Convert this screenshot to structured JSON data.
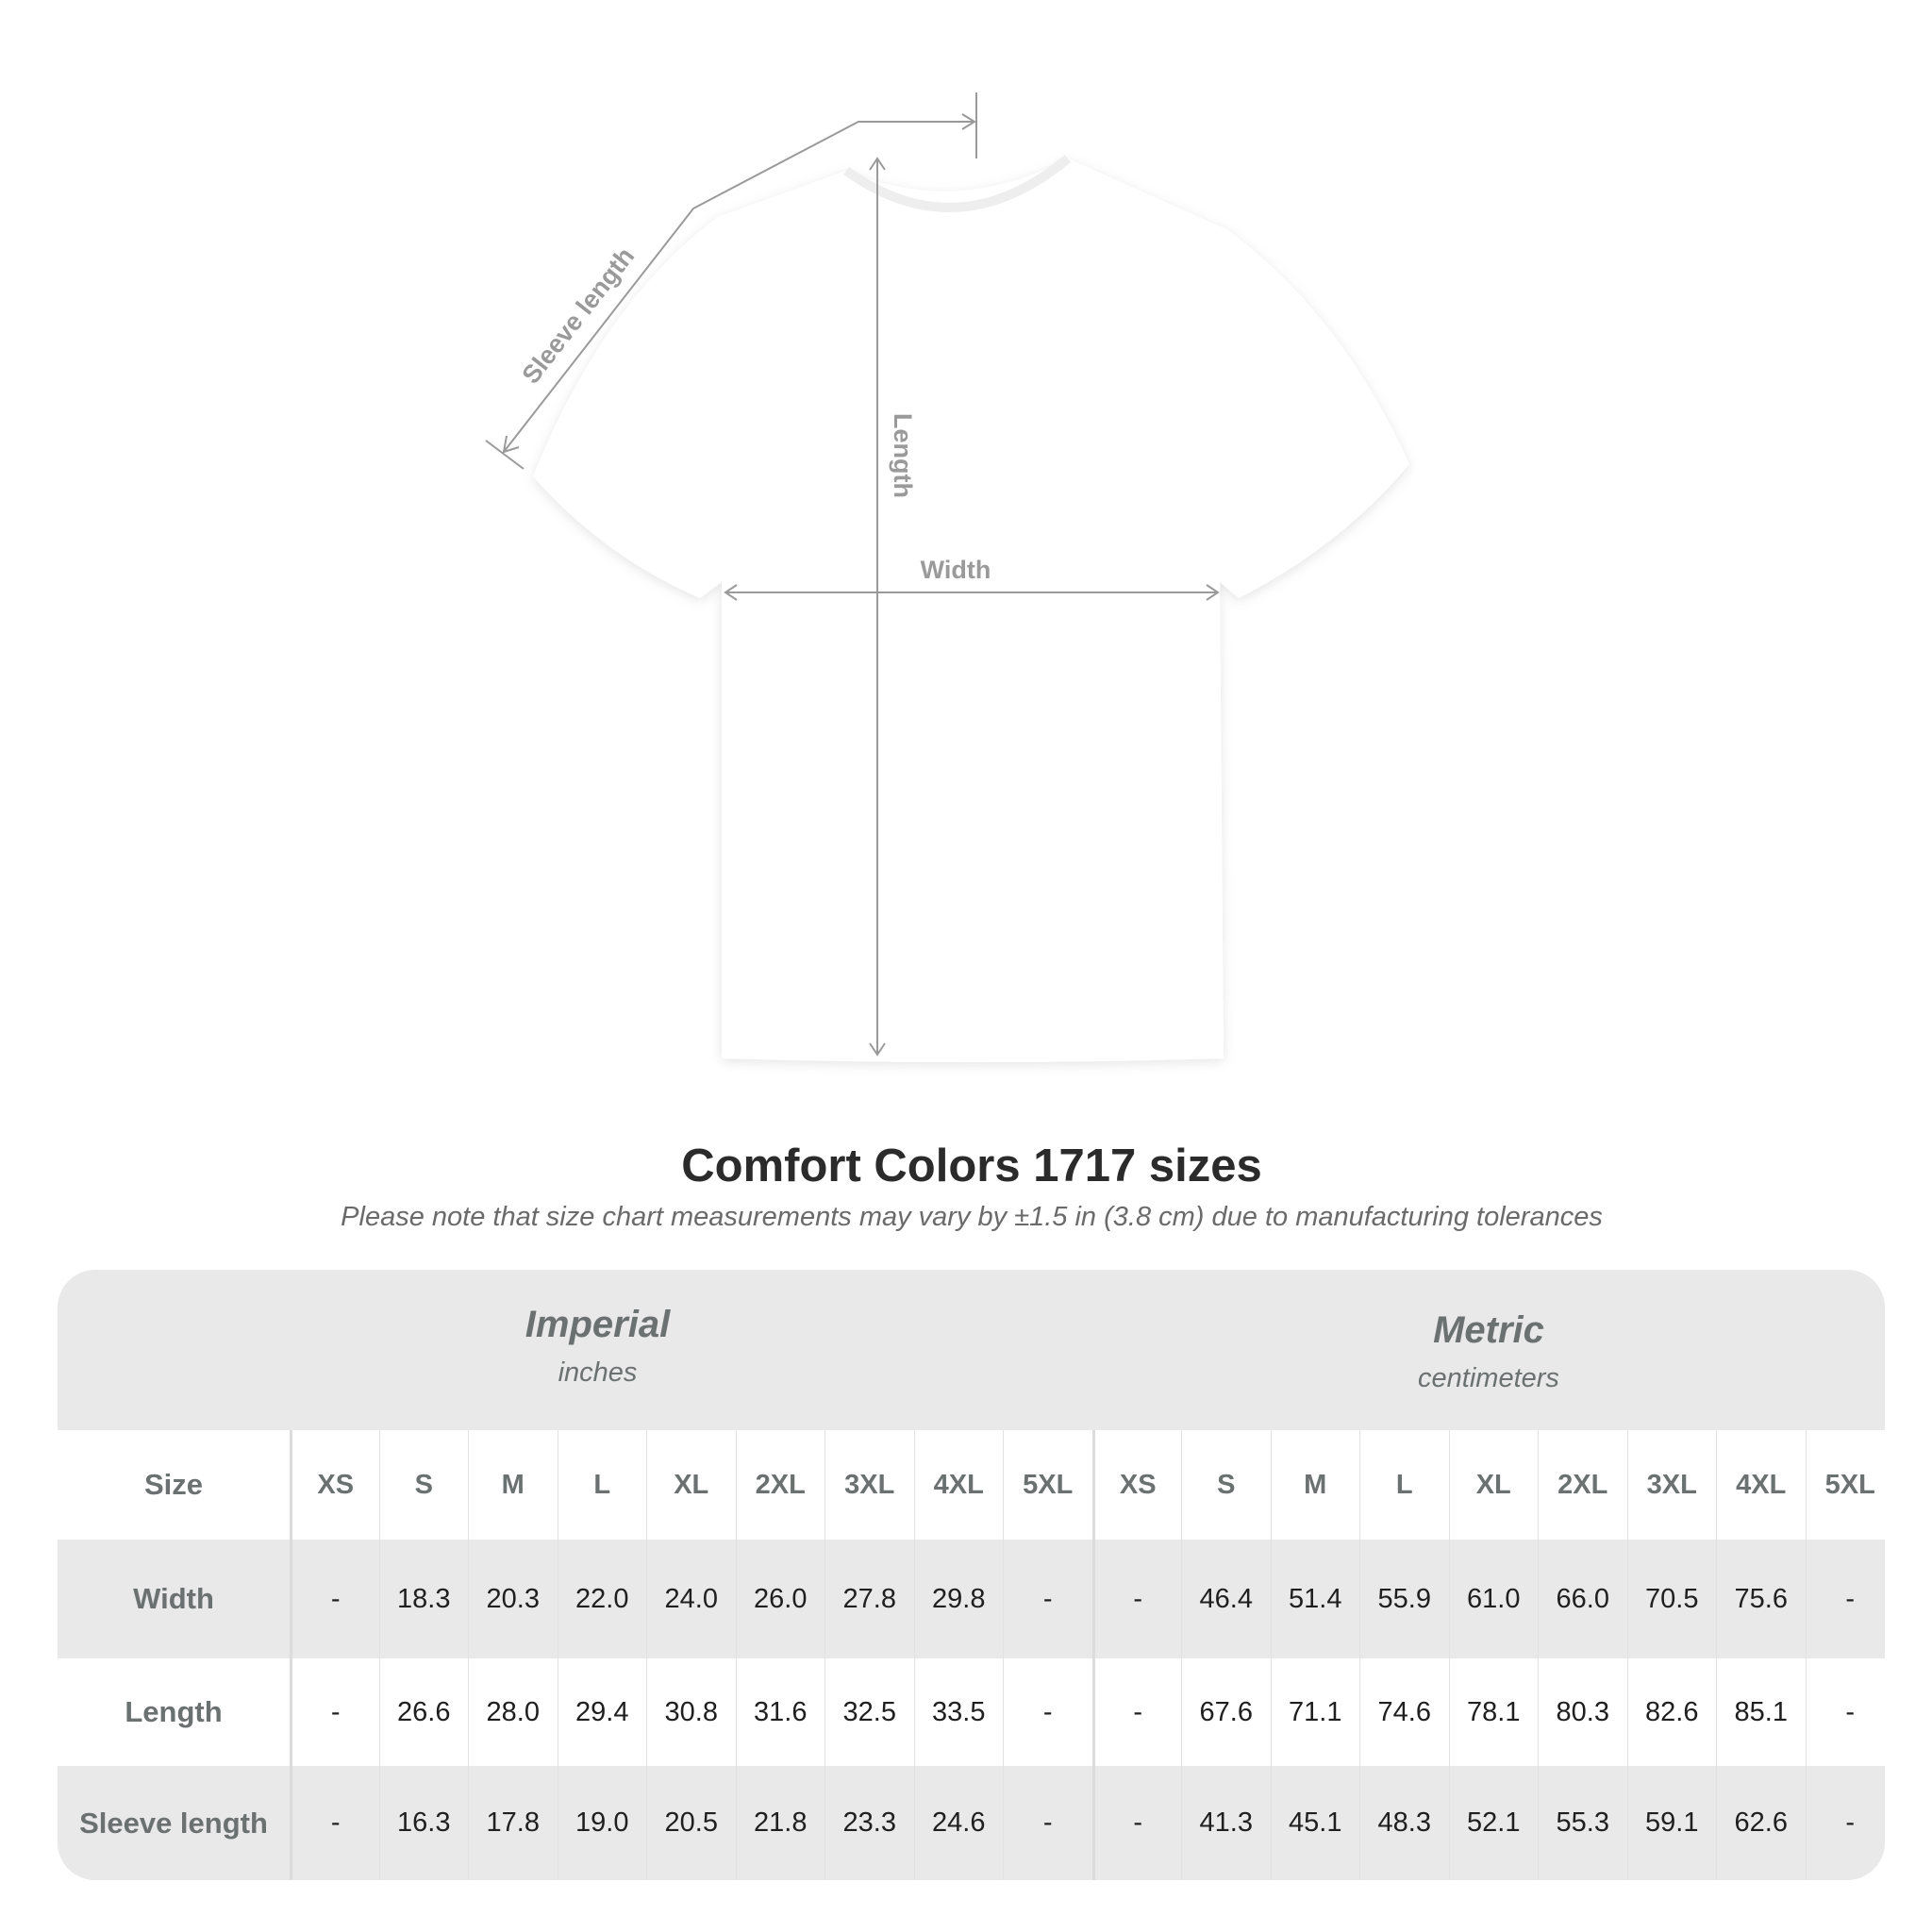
{
  "diagram": {
    "labels": {
      "sleeve": "Sleeve length",
      "length": "Length",
      "width": "Width"
    },
    "colors": {
      "shirt": "#ffffff",
      "lines": "#9a9a9a"
    }
  },
  "title": "Comfort Colors 1717 sizes",
  "note": "Please note that size chart measurements may vary by ±1.5 in (3.8 cm) due to manufacturing tolerances",
  "table": {
    "groups": [
      {
        "name": "Imperial",
        "unit": "inches"
      },
      {
        "name": "Metric",
        "unit": "centimeters"
      }
    ],
    "size_label": "Size",
    "sizes": [
      "XS",
      "S",
      "M",
      "L",
      "XL",
      "2XL",
      "3XL",
      "4XL",
      "5XL"
    ],
    "rows": [
      {
        "label": "Width",
        "imperial": [
          "-",
          "18.3",
          "20.3",
          "22.0",
          "24.0",
          "26.0",
          "27.8",
          "29.8",
          "-"
        ],
        "metric": [
          "-",
          "46.4",
          "51.4",
          "55.9",
          "61.0",
          "66.0",
          "70.5",
          "75.6",
          "-"
        ]
      },
      {
        "label": "Length",
        "imperial": [
          "-",
          "26.6",
          "28.0",
          "29.4",
          "30.8",
          "31.6",
          "32.5",
          "33.5",
          "-"
        ],
        "metric": [
          "-",
          "67.6",
          "71.1",
          "74.6",
          "78.1",
          "80.3",
          "82.6",
          "85.1",
          "-"
        ]
      },
      {
        "label": "Sleeve length",
        "imperial": [
          "-",
          "16.3",
          "17.8",
          "19.0",
          "20.5",
          "21.8",
          "23.3",
          "24.6",
          "-"
        ],
        "metric": [
          "-",
          "41.3",
          "45.1",
          "48.3",
          "52.1",
          "55.3",
          "59.1",
          "62.6",
          "-"
        ]
      }
    ],
    "colors": {
      "header_band": "#e9e9e9",
      "text_gray": "#6b7070"
    }
  }
}
